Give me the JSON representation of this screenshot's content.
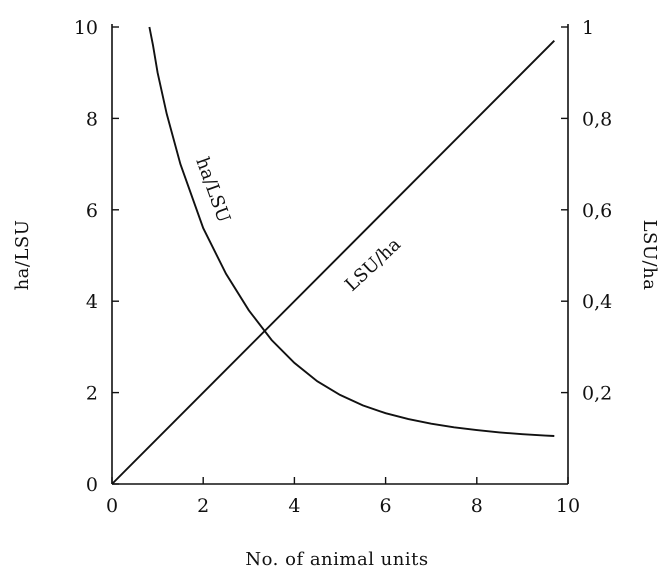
{
  "chart_data": {
    "type": "line",
    "xlabel": "No. of animal units",
    "ylabel_left": "ha/LSU",
    "ylabel_right": "LSU/ha",
    "xlim": [
      0,
      10
    ],
    "ylim_left": [
      0,
      10
    ],
    "ylim_right": [
      0,
      1
    ],
    "x_ticks": [
      0,
      2,
      4,
      6,
      8,
      10
    ],
    "x_tick_labels": [
      "0",
      "2",
      "4",
      "6",
      "8",
      "10"
    ],
    "y_left_ticks": [
      0,
      2,
      4,
      6,
      8,
      10
    ],
    "y_left_tick_labels": [
      "0",
      "2",
      "4",
      "6",
      "8",
      "10"
    ],
    "y_right_ticks": [
      0.2,
      0.4,
      0.6,
      0.8,
      1
    ],
    "y_right_tick_labels": [
      "0,2",
      "0,4",
      "0,6",
      "0,8",
      "1"
    ],
    "grid": false,
    "series": [
      {
        "name": "ha/LSU",
        "axis": "left",
        "x": [
          0.82,
          0.9,
          1.0,
          1.2,
          1.5,
          2.0,
          2.5,
          3.0,
          3.5,
          4.0,
          4.5,
          5.0,
          5.5,
          6.0,
          6.5,
          7.0,
          7.5,
          8.0,
          8.5,
          9.0,
          9.5,
          9.7
        ],
        "y": [
          10.0,
          9.6,
          9.0,
          8.1,
          7.0,
          5.6,
          4.6,
          3.8,
          3.15,
          2.65,
          2.25,
          1.95,
          1.72,
          1.55,
          1.42,
          1.32,
          1.24,
          1.18,
          1.13,
          1.09,
          1.06,
          1.05
        ]
      },
      {
        "name": "LSU/ha",
        "axis": "right",
        "x": [
          0,
          9.7
        ],
        "y": [
          0,
          0.97
        ]
      }
    ]
  }
}
